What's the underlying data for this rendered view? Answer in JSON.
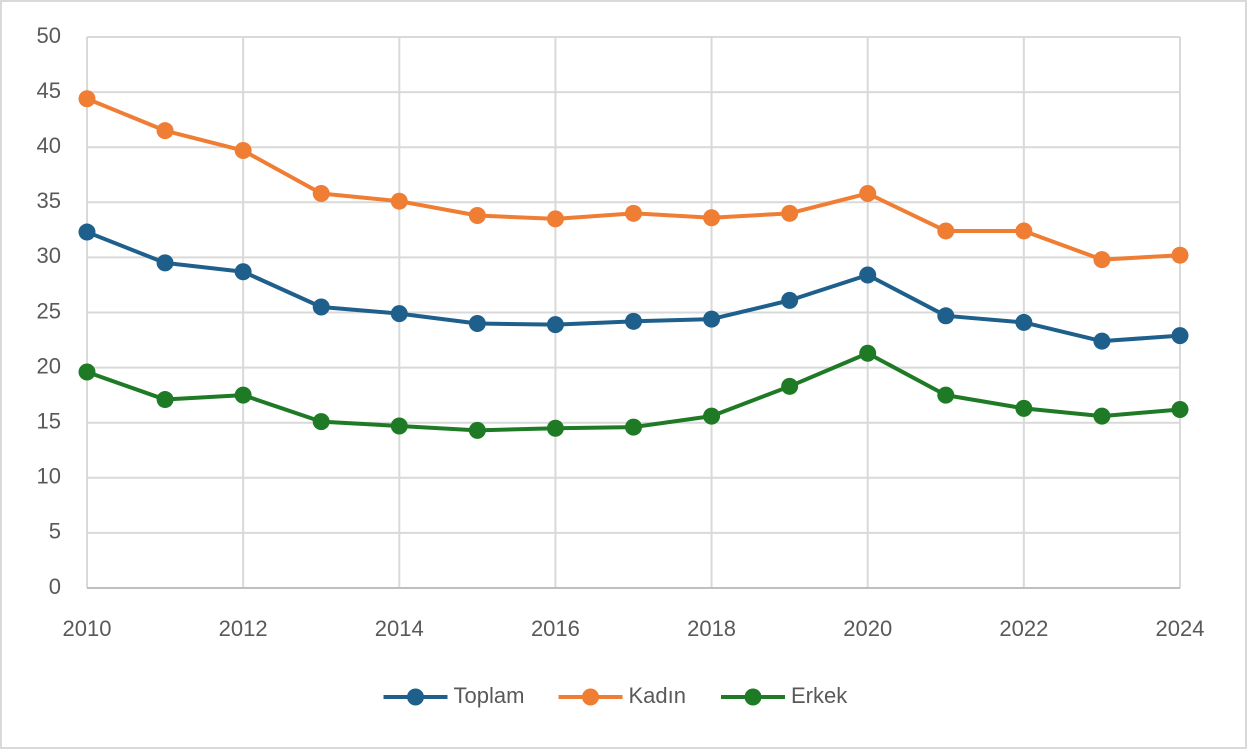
{
  "chart_data": {
    "type": "line",
    "x": [
      2010,
      2011,
      2012,
      2013,
      2014,
      2015,
      2016,
      2017,
      2018,
      2019,
      2020,
      2021,
      2022,
      2023,
      2024
    ],
    "series": [
      {
        "name": "Toplam",
        "color": "#1f5f8b",
        "values": [
          32.3,
          29.5,
          28.7,
          25.5,
          24.9,
          24.0,
          23.9,
          24.2,
          24.4,
          26.1,
          28.4,
          24.7,
          24.1,
          22.4,
          22.9
        ]
      },
      {
        "name": "Kadın",
        "color": "#ef7d33",
        "values": [
          44.4,
          41.5,
          39.7,
          35.8,
          35.1,
          33.8,
          33.5,
          34.0,
          33.6,
          34.0,
          35.8,
          32.4,
          32.4,
          29.8,
          30.2
        ]
      },
      {
        "name": "Erkek",
        "color": "#1e7a25",
        "values": [
          19.6,
          17.1,
          17.5,
          15.1,
          14.7,
          14.3,
          14.5,
          14.6,
          15.6,
          18.3,
          21.3,
          17.5,
          16.3,
          15.6,
          16.2
        ]
      }
    ],
    "xlim": [
      2010,
      2024
    ],
    "xticks": [
      2010,
      2012,
      2014,
      2016,
      2018,
      2020,
      2022,
      2024
    ],
    "ylim": [
      0,
      50
    ],
    "yticks": [
      0,
      5,
      10,
      15,
      20,
      25,
      30,
      35,
      40,
      45,
      50
    ],
    "grid": true,
    "legend": "bottom"
  }
}
